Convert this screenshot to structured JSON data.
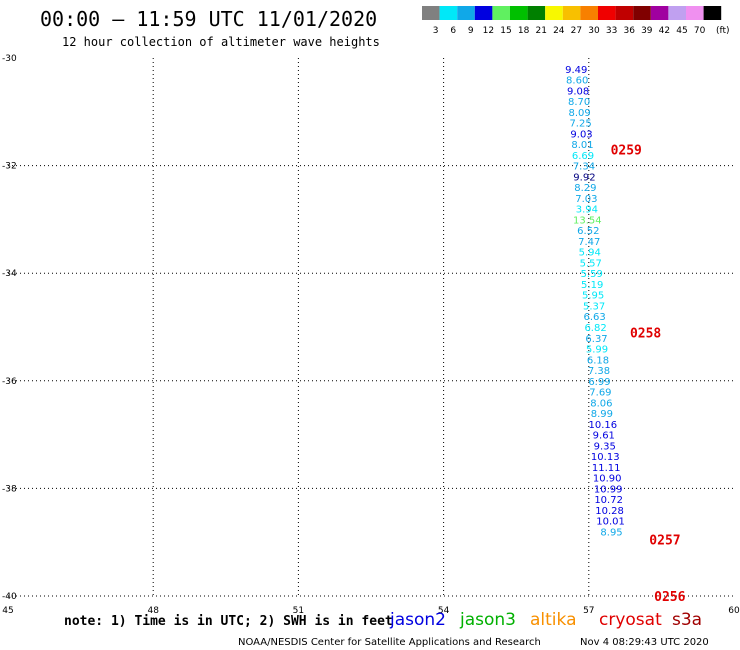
{
  "header": {
    "title": "00:00 – 11:59 UTC 11/01/2020",
    "subtitle": "12 hour collection of altimeter wave heights"
  },
  "legend": {
    "unit": "(ft)",
    "bins": [
      {
        "label": "3",
        "color": "#808080"
      },
      {
        "label": "6",
        "color": "#00e8f8"
      },
      {
        "label": "9",
        "color": "#10a8e8"
      },
      {
        "label": "12",
        "color": "#0000e0"
      },
      {
        "label": "15",
        "color": "#60f060"
      },
      {
        "label": "18",
        "color": "#00c000"
      },
      {
        "label": "21",
        "color": "#008000"
      },
      {
        "label": "24",
        "color": "#f8f800"
      },
      {
        "label": "27",
        "color": "#f8c000"
      },
      {
        "label": "30",
        "color": "#f88000"
      },
      {
        "label": "33",
        "color": "#f00000"
      },
      {
        "label": "36",
        "color": "#c00000"
      },
      {
        "label": "39",
        "color": "#800000"
      },
      {
        "label": "42",
        "color": "#a000a0"
      },
      {
        "label": "45",
        "color": "#c0a0f0"
      },
      {
        "label": "70",
        "color": "#f090f0"
      },
      {
        "label": "",
        "color": "#000000"
      }
    ]
  },
  "footer": {
    "note": "note: 1) Time is in UTC; 2) SWH is in feet",
    "credit": "NOAA/NESDIS Center for Satellite Applications and Research",
    "timestamp": "Nov  4 08:29:43 UTC 2020",
    "satellites": [
      {
        "name": "jason2",
        "color": "#0000e0"
      },
      {
        "name": "jason3",
        "color": "#00b000"
      },
      {
        "name": "altika",
        "color": "#f89000"
      },
      {
        "name": "cryosat",
        "color": "#e00000"
      },
      {
        "name": "s3a",
        "color": "#a00000"
      }
    ]
  },
  "chart_data": {
    "type": "scatter",
    "xlim": [
      45,
      60
    ],
    "ylim": [
      -40,
      -30
    ],
    "x_ticks": [
      45,
      48,
      51,
      54,
      57,
      60
    ],
    "y_ticks": [
      -30,
      -32,
      -34,
      -36,
      -38,
      -40
    ],
    "x_tick_labels": [
      "45",
      "48",
      "51",
      "54",
      "57",
      "60"
    ],
    "y_tick_labels": [
      "-30",
      "-32",
      "-34",
      "-36",
      "-38",
      "-40"
    ],
    "grid": true,
    "points": [
      {
        "x": 56.74,
        "y": -30.2,
        "label": "9.49",
        "color": "#0000e0"
      },
      {
        "x": 56.76,
        "y": -30.4,
        "label": "8.60",
        "color": "#10a8e8"
      },
      {
        "x": 56.78,
        "y": -30.6,
        "label": "9.08",
        "color": "#0000e0"
      },
      {
        "x": 56.8,
        "y": -30.8,
        "label": "8.70",
        "color": "#10a8e8"
      },
      {
        "x": 56.81,
        "y": -31.0,
        "label": "8.09",
        "color": "#10a8e8"
      },
      {
        "x": 56.83,
        "y": -31.2,
        "label": "7.25",
        "color": "#10a8e8"
      },
      {
        "x": 56.85,
        "y": -31.4,
        "label": "9.03",
        "color": "#0000e0"
      },
      {
        "x": 56.87,
        "y": -31.6,
        "label": "8.01",
        "color": "#10a8e8"
      },
      {
        "x": 56.88,
        "y": -31.8,
        "label": "6.69",
        "color": "#00e8f8"
      },
      {
        "x": 56.9,
        "y": -32.0,
        "label": "7.34",
        "color": "#10a8e8"
      },
      {
        "x": 56.91,
        "y": -32.2,
        "label": "9.92",
        "color": "#000080"
      },
      {
        "x": 56.93,
        "y": -32.4,
        "label": "8.29",
        "color": "#10a8e8"
      },
      {
        "x": 56.95,
        "y": -32.6,
        "label": "7.03",
        "color": "#10a8e8"
      },
      {
        "x": 56.96,
        "y": -32.8,
        "label": "3.94",
        "color": "#00e8f8"
      },
      {
        "x": 56.97,
        "y": -33.0,
        "label": "13.54",
        "color": "#60f060"
      },
      {
        "x": 56.99,
        "y": -33.2,
        "label": "6.52",
        "color": "#10a8e8"
      },
      {
        "x": 57.01,
        "y": -33.4,
        "label": "7.47",
        "color": "#10a8e8"
      },
      {
        "x": 57.02,
        "y": -33.6,
        "label": "5.94",
        "color": "#00e8f8"
      },
      {
        "x": 57.04,
        "y": -33.8,
        "label": "5.57",
        "color": "#00e8f8"
      },
      {
        "x": 57.06,
        "y": -34.0,
        "label": "5.59",
        "color": "#00e8f8"
      },
      {
        "x": 57.07,
        "y": -34.2,
        "label": "5.19",
        "color": "#00e8f8"
      },
      {
        "x": 57.09,
        "y": -34.4,
        "label": "5.95",
        "color": "#00e8f8"
      },
      {
        "x": 57.11,
        "y": -34.6,
        "label": "5.37",
        "color": "#00e8f8"
      },
      {
        "x": 57.12,
        "y": -34.8,
        "label": "6.63",
        "color": "#10a8e8"
      },
      {
        "x": 57.14,
        "y": -35.0,
        "label": "6.82",
        "color": "#00e8f8"
      },
      {
        "x": 57.16,
        "y": -35.2,
        "label": "6.37",
        "color": "#10a8e8"
      },
      {
        "x": 57.17,
        "y": -35.4,
        "label": "5.99",
        "color": "#00e8f8"
      },
      {
        "x": 57.19,
        "y": -35.6,
        "label": "6.18",
        "color": "#10a8e8"
      },
      {
        "x": 57.21,
        "y": -35.8,
        "label": "7.38",
        "color": "#10a8e8"
      },
      {
        "x": 57.22,
        "y": -36.0,
        "label": "6.99",
        "color": "#10a8e8"
      },
      {
        "x": 57.24,
        "y": -36.2,
        "label": "7.69",
        "color": "#10a8e8"
      },
      {
        "x": 57.26,
        "y": -36.4,
        "label": "8.06",
        "color": "#10a8e8"
      },
      {
        "x": 57.27,
        "y": -36.6,
        "label": "8.99",
        "color": "#10a8e8"
      },
      {
        "x": 57.29,
        "y": -36.8,
        "label": "10.16",
        "color": "#0000e0"
      },
      {
        "x": 57.31,
        "y": -37.0,
        "label": "9.61",
        "color": "#0000e0"
      },
      {
        "x": 57.33,
        "y": -37.2,
        "label": "9.35",
        "color": "#0000e0"
      },
      {
        "x": 57.34,
        "y": -37.4,
        "label": "10.13",
        "color": "#0000e0"
      },
      {
        "x": 57.36,
        "y": -37.6,
        "label": "11.11",
        "color": "#0000e0"
      },
      {
        "x": 57.38,
        "y": -37.8,
        "label": "10.90",
        "color": "#0000e0"
      },
      {
        "x": 57.4,
        "y": -38.0,
        "label": "10.99",
        "color": "#0000e0"
      },
      {
        "x": 57.41,
        "y": -38.2,
        "label": "10.72",
        "color": "#0000e0"
      },
      {
        "x": 57.43,
        "y": -38.4,
        "label": "10.28",
        "color": "#0000e0"
      },
      {
        "x": 57.45,
        "y": -38.6,
        "label": "10.01",
        "color": "#0000e0"
      },
      {
        "x": 57.47,
        "y": -38.8,
        "label": "8.95",
        "color": "#10a8e8"
      }
    ],
    "time_annotations": [
      {
        "x": 57.45,
        "y": -31.7,
        "label": "0259",
        "color": "#e00000"
      },
      {
        "x": 57.85,
        "y": -35.1,
        "label": "0258",
        "color": "#e00000"
      },
      {
        "x": 58.25,
        "y": -38.95,
        "label": "0257",
        "color": "#e00000"
      },
      {
        "x": 58.35,
        "y": -40.0,
        "label": "0256",
        "color": "#e00000"
      }
    ]
  }
}
